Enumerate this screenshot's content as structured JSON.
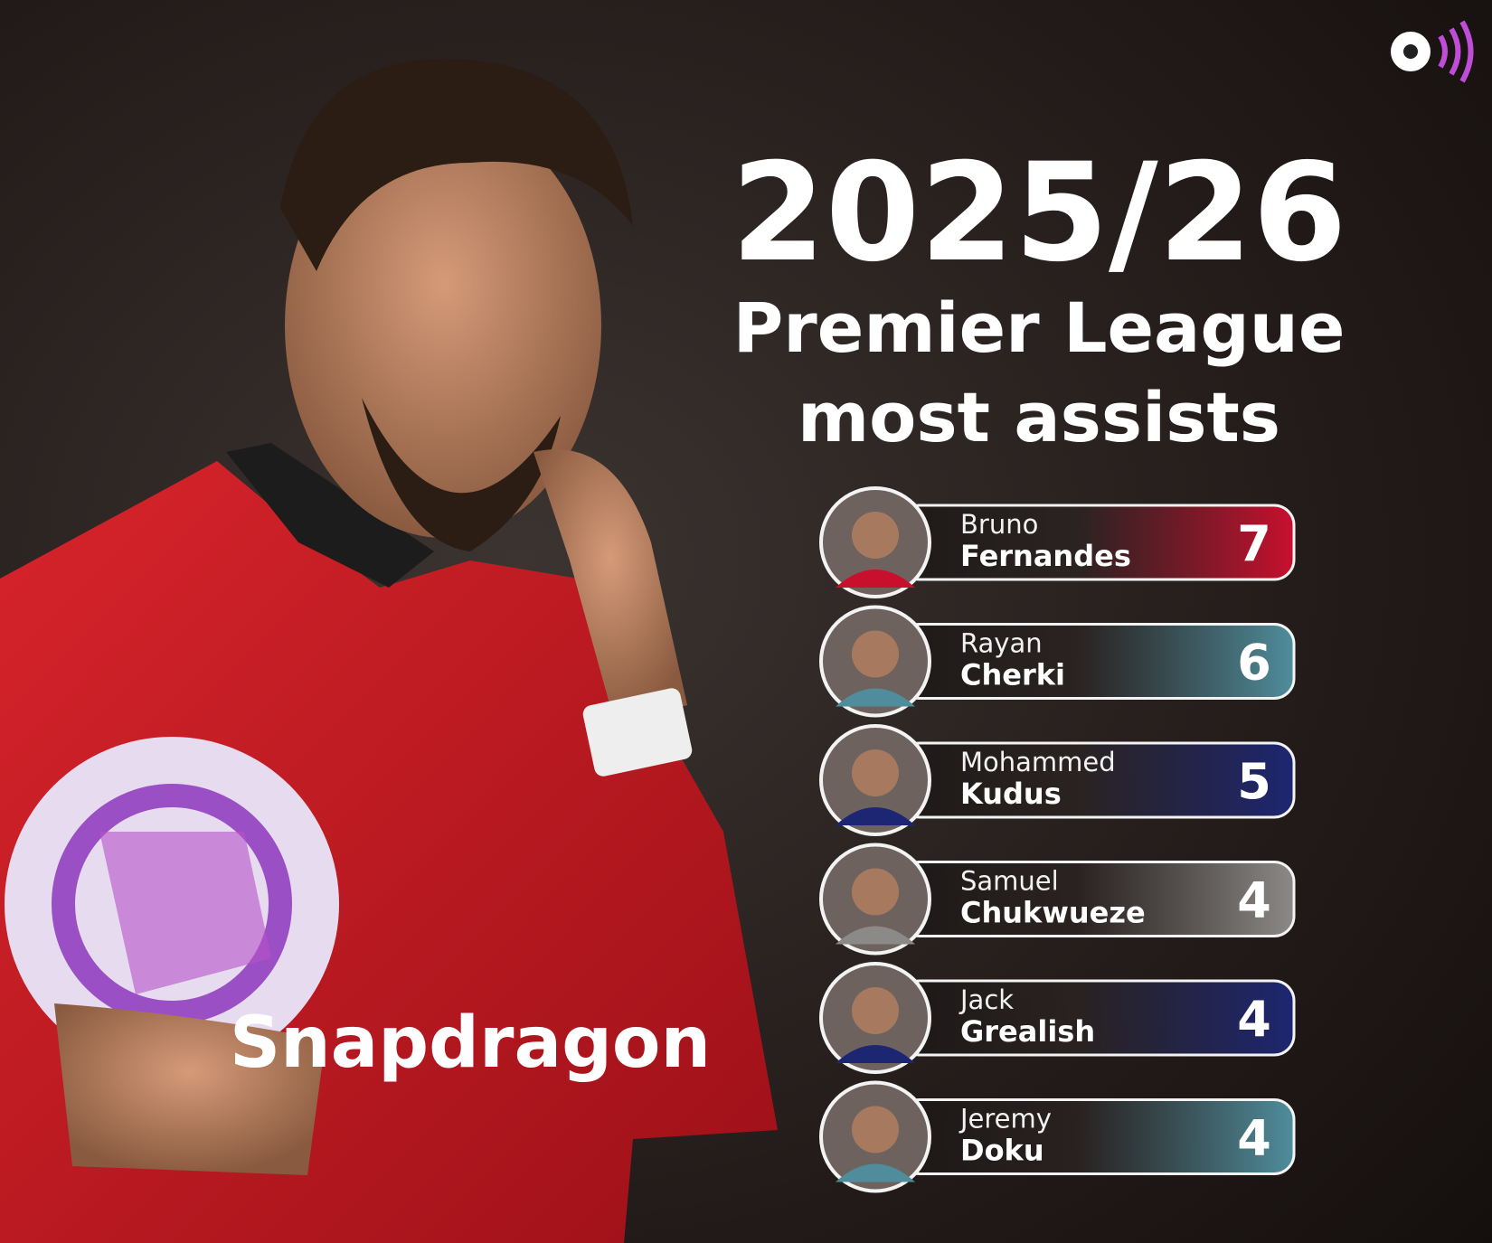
{
  "header": {
    "season": "2025/26",
    "line1": "Premier League",
    "line2": "most assists"
  },
  "players": [
    {
      "first": "Bruno",
      "last": "Fernandes",
      "assists": 7,
      "color": "#c8102e"
    },
    {
      "first": "Rayan",
      "last": "Cherki",
      "assists": 6,
      "color": "#4f8d9c"
    },
    {
      "first": "Mohammed",
      "last": "Kudus",
      "assists": 5,
      "color": "#1d2672"
    },
    {
      "first": "Samuel",
      "last": "Chukwueze",
      "assists": 4,
      "color": "#8c8a88"
    },
    {
      "first": "Jack",
      "last": "Grealish",
      "assists": 4,
      "color": "#1d2672"
    },
    {
      "first": "Jeremy",
      "last": "Doku",
      "assists": 4,
      "color": "#4f8d9c"
    }
  ]
}
